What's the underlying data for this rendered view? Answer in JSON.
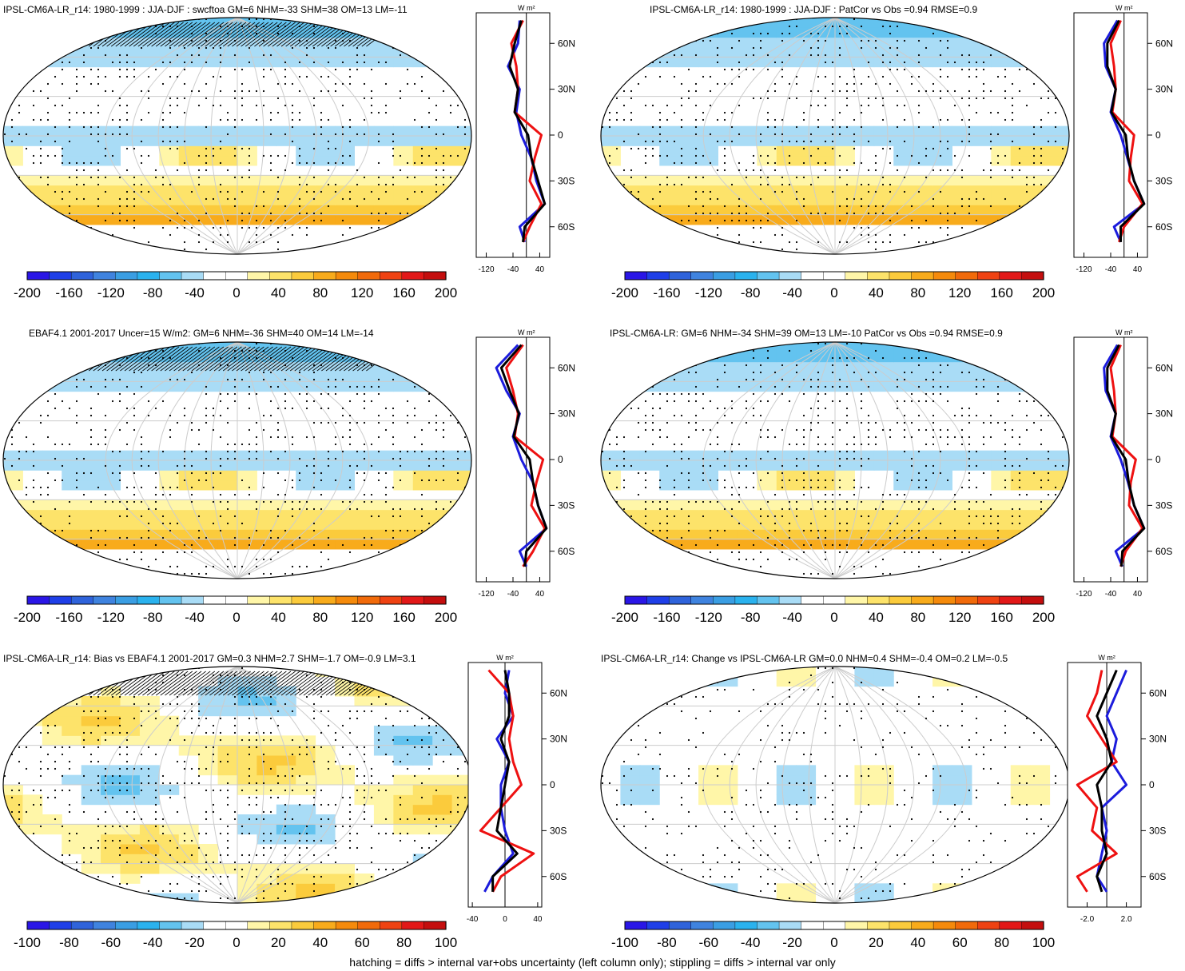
{
  "footnote": "hatching = diffs > internal var+obs uncertainty (left column only); stippling = diffs > internal var only",
  "colors": {
    "scale": [
      "#2a16e6",
      "#1f3fe8",
      "#2f63db",
      "#3f83df",
      "#3a9ee3",
      "#2ab2ee",
      "#63c3ef",
      "#a9dcf6",
      "#ffffff",
      "#ffffff",
      "#fff6a8",
      "#fde36a",
      "#fbcb3c",
      "#f8ab1b",
      "#f58a0b",
      "#f16a0a",
      "#ef4212",
      "#e21818",
      "#c40e0e"
    ],
    "line_blue": "#1c1cdc",
    "line_red": "#ee1111",
    "line_black": "#000000"
  },
  "panels": [
    {
      "id": "p1",
      "title": "IPSL-CM6A-LR_r14: 1980-1999 : JJA-DJF : swcftoa GM=6 NHM=-33 SHM=38 OM=13 LM=-11",
      "colorbar_labels": [
        "-200",
        "-160",
        "-120",
        "-80",
        "-40",
        "0",
        "40",
        "80",
        "120",
        "160",
        "200"
      ],
      "zonal_unit": "W m²",
      "zonal_lat_labels": [
        "60N",
        "30N",
        "0",
        "30S",
        "60S"
      ],
      "zonal_x_labels": [
        "-120",
        "-40",
        "40"
      ]
    },
    {
      "id": "p2",
      "title": "IPSL-CM6A-LR_r14: 1980-1999 : JJA-DJF : PatCor vs Obs =0.94 RMSE=0.9",
      "colorbar_labels": [
        "-200",
        "-160",
        "-120",
        "-80",
        "-40",
        "0",
        "40",
        "80",
        "120",
        "160",
        "200"
      ],
      "zonal_unit": "W m²",
      "zonal_lat_labels": [
        "60N",
        "30N",
        "0",
        "30S",
        "60S"
      ],
      "zonal_x_labels": [
        "-120",
        "-40",
        "40"
      ]
    },
    {
      "id": "p3",
      "title": "EBAF4.1 2001-2017 Uncer=15 W/m2: GM=6 NHM=-36 SHM=40 OM=14 LM=-14",
      "colorbar_labels": [
        "-200",
        "-160",
        "-120",
        "-80",
        "-40",
        "0",
        "40",
        "80",
        "120",
        "160",
        "200"
      ],
      "zonal_unit": "W m²",
      "zonal_lat_labels": [
        "60N",
        "30N",
        "0",
        "30S",
        "60S"
      ],
      "zonal_x_labels": [
        "-120",
        "-40",
        "40"
      ]
    },
    {
      "id": "p4",
      "title": "IPSL-CM6A-LR: GM=6 NHM=-34 SHM=39 OM=13 LM=-10 PatCor vs Obs =0.94 RMSE=0.9",
      "colorbar_labels": [
        "-200",
        "-160",
        "-120",
        "-80",
        "-40",
        "0",
        "40",
        "80",
        "120",
        "160",
        "200"
      ],
      "zonal_unit": "W m²",
      "zonal_lat_labels": [
        "60N",
        "30N",
        "0",
        "30S",
        "60S"
      ],
      "zonal_x_labels": [
        "-120",
        "-40",
        "40"
      ]
    },
    {
      "id": "p5",
      "title": "IPSL-CM6A-LR_r14: Bias vs EBAF4.1 2001-2017 GM=0.3 NHM=2.7 SHM=-1.7 OM=-0.9 LM=3.1",
      "colorbar_labels": [
        "-100",
        "-80",
        "-60",
        "-40",
        "-20",
        "0",
        "20",
        "40",
        "60",
        "80",
        "100"
      ],
      "zonal_unit": "W m²",
      "zonal_lat_labels": [
        "60N",
        "30N",
        "0",
        "30S",
        "60S"
      ],
      "zonal_x_labels": [
        "-40",
        "0",
        "40"
      ]
    },
    {
      "id": "p6",
      "title": "IPSL-CM6A-LR_r14: Change vs IPSL-CM6A-LR GM=0.0 NHM=0.4 SHM=-0.4 OM=0.2 LM=-0.5",
      "colorbar_labels": [
        "-100",
        "-80",
        "-60",
        "-40",
        "-20",
        "0",
        "20",
        "40",
        "60",
        "80",
        "100"
      ],
      "zonal_unit": "W m²",
      "zonal_lat_labels": [
        "60N",
        "30N",
        "0",
        "30S",
        "60S"
      ],
      "zonal_x_labels": [
        "-2.0",
        "2.0"
      ]
    }
  ],
  "chart_data": [
    {
      "type": "heatmap",
      "title": "IPSL-CM6A-LR_r14: 1980-1999 : JJA-DJF : swcftoa GM=6 NHM=-33 SHM=38 OM=13 LM=-11",
      "colorbar": [
        -200,
        -180,
        -160,
        -140,
        -120,
        -100,
        -80,
        -60,
        -40,
        -20,
        0,
        20,
        40,
        60,
        80,
        100,
        120,
        160,
        200
      ],
      "colorbar_ticks": [
        -200,
        -160,
        -120,
        -80,
        -40,
        0,
        40,
        80,
        120,
        160,
        200
      ],
      "zonal_mean": {
        "type": "line",
        "ylabel": "W m²",
        "lat": [
          75,
          60,
          45,
          30,
          15,
          0,
          -15,
          -30,
          -45,
          -60,
          -70
        ],
        "xlim": [
          -150,
          70
        ],
        "xticks": [
          -120,
          -40,
          40
        ],
        "series": [
          {
            "color": "blue",
            "values": [
              -20,
              -25,
              -55,
              -20,
              -30,
              -15,
              15,
              30,
              55,
              -20,
              -5
            ]
          },
          {
            "color": "red",
            "values": [
              -10,
              -45,
              -30,
              -25,
              -35,
              45,
              25,
              10,
              45,
              10,
              -10
            ]
          },
          {
            "color": "black",
            "values": [
              -15,
              -35,
              -50,
              -25,
              -35,
              5,
              15,
              35,
              55,
              -5,
              -10
            ]
          }
        ]
      }
    },
    {
      "type": "heatmap",
      "title": "IPSL-CM6A-LR_r14: 1980-1999 : JJA-DJF : PatCor vs Obs =0.94 RMSE=0.9",
      "colorbar": [
        -200,
        -180,
        -160,
        -140,
        -120,
        -100,
        -80,
        -60,
        -40,
        -20,
        0,
        20,
        40,
        60,
        80,
        100,
        120,
        160,
        200
      ],
      "colorbar_ticks": [
        -200,
        -160,
        -120,
        -80,
        -40,
        0,
        40,
        80,
        120,
        160,
        200
      ],
      "zonal_mean": {
        "type": "line",
        "ylabel": "W m²",
        "lat": [
          75,
          60,
          45,
          30,
          15,
          0,
          -15,
          -30,
          -45,
          -60,
          -70
        ],
        "xlim": [
          -150,
          70
        ],
        "xticks": [
          -120,
          -40,
          40
        ],
        "series": [
          {
            "color": "blue",
            "values": [
              -20,
              -60,
              -55,
              -25,
              -40,
              -10,
              10,
              30,
              60,
              -30,
              -10
            ]
          },
          {
            "color": "red",
            "values": [
              -10,
              -40,
              -30,
              -25,
              -35,
              30,
              20,
              15,
              55,
              0,
              -15
            ]
          },
          {
            "color": "black",
            "values": [
              -15,
              -50,
              -50,
              -25,
              -38,
              5,
              12,
              30,
              60,
              -10,
              -10
            ]
          }
        ]
      }
    },
    {
      "type": "heatmap",
      "title": "EBAF4.1 2001-2017 Uncer=15 W/m2: GM=6 NHM=-36 SHM=40 OM=14 LM=-14",
      "colorbar": [
        -200,
        -180,
        -160,
        -140,
        -120,
        -100,
        -80,
        -60,
        -40,
        -20,
        0,
        20,
        40,
        60,
        80,
        100,
        120,
        160,
        200
      ],
      "colorbar_ticks": [
        -200,
        -160,
        -120,
        -80,
        -40,
        0,
        40,
        80,
        120,
        160,
        200
      ],
      "zonal_mean": {
        "type": "line",
        "ylabel": "W m²",
        "lat": [
          75,
          60,
          45,
          30,
          15,
          0,
          -15,
          -30,
          -45,
          -60,
          -70
        ],
        "xlim": [
          -150,
          70
        ],
        "xticks": [
          -120,
          -40,
          40
        ],
        "series": [
          {
            "color": "blue",
            "values": [
              -25,
              -90,
              -60,
              -20,
              -40,
              -15,
              20,
              35,
              60,
              -20,
              0
            ]
          },
          {
            "color": "red",
            "values": [
              -10,
              -60,
              -40,
              -25,
              -35,
              50,
              30,
              15,
              55,
              20,
              -10
            ]
          },
          {
            "color": "black",
            "values": [
              -15,
              -75,
              -50,
              -22,
              -38,
              10,
              20,
              35,
              60,
              0,
              -5
            ]
          }
        ]
      }
    },
    {
      "type": "heatmap",
      "title": "IPSL-CM6A-LR: GM=6 NHM=-34 SHM=39 OM=13 LM=-10 PatCor vs Obs =0.94 RMSE=0.9",
      "colorbar": [
        -200,
        -180,
        -160,
        -140,
        -120,
        -100,
        -80,
        -60,
        -40,
        -20,
        0,
        20,
        40,
        60,
        80,
        100,
        120,
        160,
        200
      ],
      "colorbar_ticks": [
        -200,
        -160,
        -120,
        -80,
        -40,
        0,
        40,
        80,
        120,
        160,
        200
      ],
      "zonal_mean": {
        "type": "line",
        "ylabel": "W m²",
        "lat": [
          75,
          60,
          45,
          30,
          15,
          0,
          -15,
          -30,
          -45,
          -60,
          -70
        ],
        "xlim": [
          -150,
          70
        ],
        "xticks": [
          -120,
          -40,
          40
        ],
        "series": [
          {
            "color": "blue",
            "values": [
              -20,
              -60,
              -55,
              -25,
              -40,
              -10,
              12,
              30,
              60,
              -25,
              -5
            ]
          },
          {
            "color": "red",
            "values": [
              -10,
              -40,
              -30,
              -25,
              -35,
              35,
              20,
              15,
              55,
              5,
              -10
            ]
          },
          {
            "color": "black",
            "values": [
              -15,
              -50,
              -50,
              -25,
              -38,
              5,
              14,
              30,
              60,
              -5,
              -8
            ]
          }
        ]
      }
    },
    {
      "type": "heatmap",
      "title": "IPSL-CM6A-LR_r14: Bias vs EBAF4.1 2001-2017 GM=0.3 NHM=2.7 SHM=-1.7 OM=-0.9 LM=3.1",
      "colorbar": [
        -100,
        -90,
        -80,
        -70,
        -60,
        -50,
        -40,
        -30,
        -20,
        -10,
        0,
        10,
        20,
        30,
        40,
        50,
        60,
        80,
        100
      ],
      "colorbar_ticks": [
        -100,
        -80,
        -60,
        -40,
        -20,
        0,
        20,
        40,
        60,
        80,
        100
      ],
      "zonal_mean": {
        "type": "line",
        "ylabel": "W m²",
        "lat": [
          75,
          60,
          45,
          30,
          15,
          0,
          -15,
          -30,
          -45,
          -60,
          -70
        ],
        "xlim": [
          -45,
          45
        ],
        "xticks": [
          -40,
          0,
          40
        ],
        "series": [
          {
            "color": "blue",
            "values": [
              5,
              0,
              10,
              -10,
              5,
              -5,
              -5,
              0,
              10,
              -15,
              -25
            ]
          },
          {
            "color": "red",
            "values": [
              -20,
              5,
              10,
              5,
              10,
              20,
              -5,
              -30,
              35,
              -5,
              -15
            ]
          },
          {
            "color": "black",
            "values": [
              0,
              5,
              5,
              -5,
              5,
              0,
              -5,
              -10,
              15,
              -15,
              -15
            ]
          }
        ]
      }
    },
    {
      "type": "heatmap",
      "title": "IPSL-CM6A-LR_r14: Change vs IPSL-CM6A-LR GM=0.0 NHM=0.4 SHM=-0.4 OM=0.2 LM=-0.5",
      "colorbar": [
        -100,
        -90,
        -80,
        -70,
        -60,
        -50,
        -40,
        -30,
        -20,
        -10,
        0,
        10,
        20,
        30,
        40,
        50,
        60,
        80,
        100
      ],
      "colorbar_ticks": [
        -100,
        -80,
        -60,
        -40,
        -20,
        0,
        20,
        40,
        60,
        80,
        100
      ],
      "zonal_mean": {
        "type": "line",
        "ylabel": "W m²",
        "lat": [
          75,
          60,
          45,
          30,
          15,
          0,
          -15,
          -30,
          -45,
          -60,
          -70
        ],
        "xlim": [
          -4,
          3.5
        ],
        "xticks": [
          -2,
          2
        ],
        "series": [
          {
            "color": "blue",
            "values": [
              2,
              1,
              0,
              1,
              0.5,
              2,
              -0.5,
              0,
              -0.5,
              -1,
              0
            ]
          },
          {
            "color": "red",
            "values": [
              -0.5,
              -1,
              -2,
              -0.5,
              1,
              -3,
              -1,
              -1.5,
              1,
              -3,
              -2
            ]
          },
          {
            "color": "black",
            "values": [
              1,
              0,
              -1,
              0,
              0.5,
              -1,
              -0.5,
              -0.5,
              0,
              -1,
              -0.5
            ]
          }
        ]
      }
    }
  ]
}
